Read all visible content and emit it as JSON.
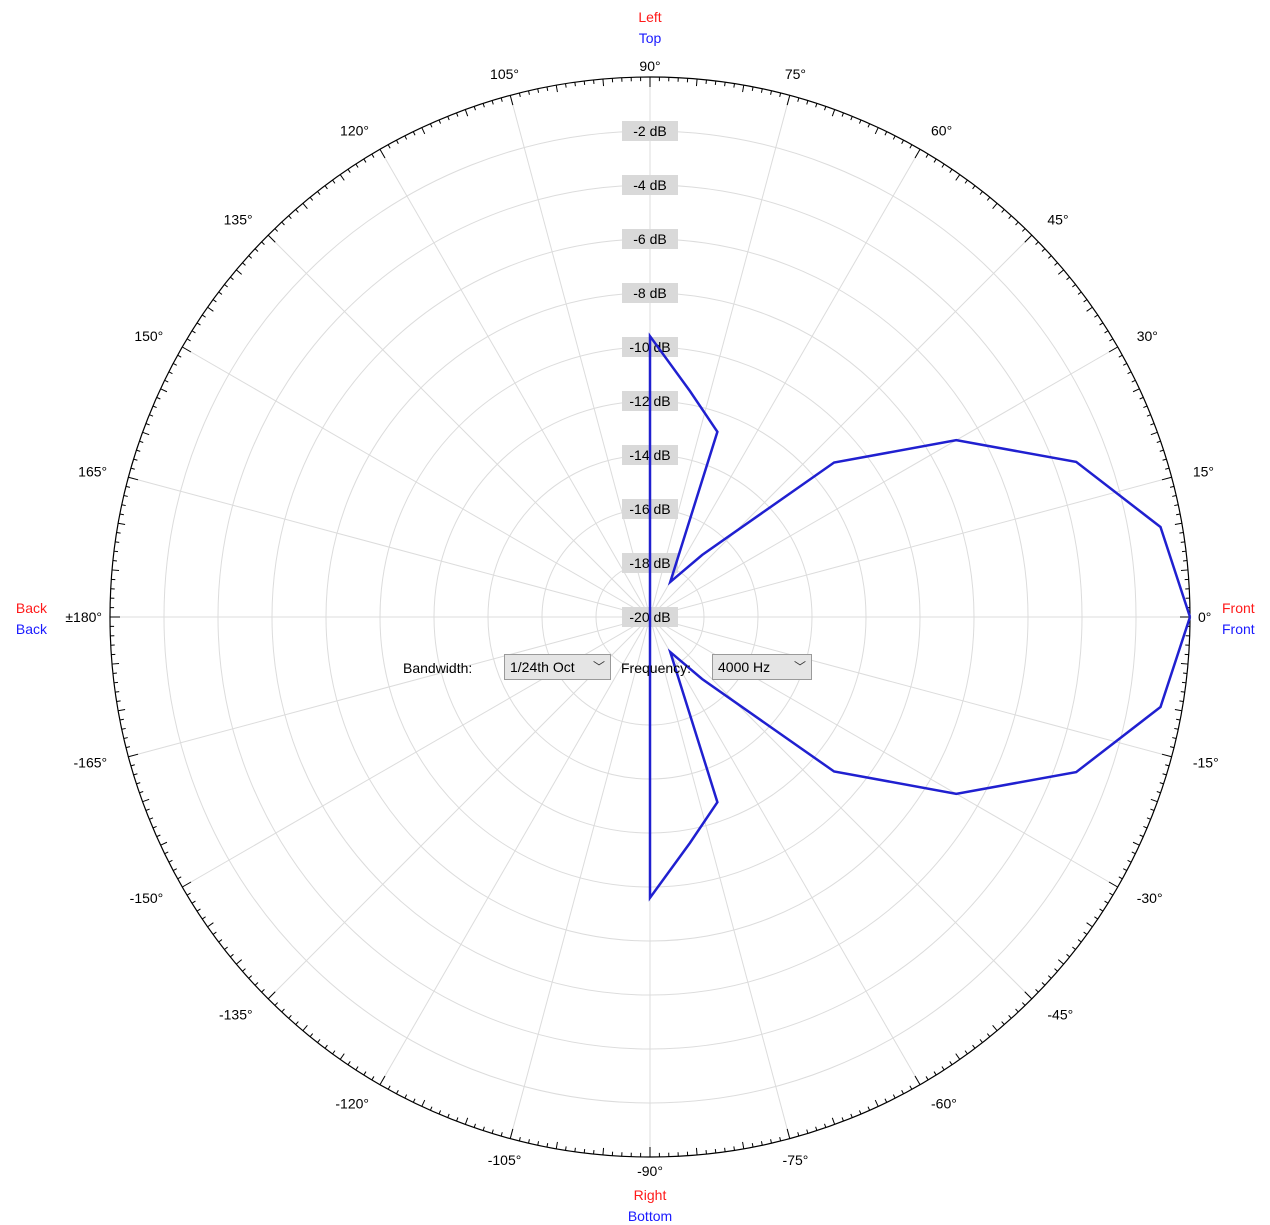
{
  "chart_data": {
    "type": "polar-line",
    "angular_unit": "degrees",
    "radial_unit": "dB",
    "radial_range": [
      -20,
      0
    ],
    "radial_ticks": [
      "-2 dB",
      "-4 dB",
      "-6 dB",
      "-8 dB",
      "-10 dB",
      "-12 dB",
      "-14 dB",
      "-16 dB",
      "-18 dB",
      "-20 dB"
    ],
    "radial_tick_values": [
      -2,
      -4,
      -6,
      -8,
      -10,
      -12,
      -14,
      -16,
      -18,
      -20
    ],
    "angle_labels": [
      {
        "deg": 0,
        "text": "0°"
      },
      {
        "deg": 15,
        "text": "15°"
      },
      {
        "deg": 30,
        "text": "30°"
      },
      {
        "deg": 45,
        "text": "45°"
      },
      {
        "deg": 60,
        "text": "60°"
      },
      {
        "deg": 75,
        "text": "75°"
      },
      {
        "deg": 90,
        "text": "90°"
      },
      {
        "deg": 105,
        "text": "105°"
      },
      {
        "deg": 120,
        "text": "120°"
      },
      {
        "deg": 135,
        "text": "135°"
      },
      {
        "deg": 150,
        "text": "150°"
      },
      {
        "deg": 165,
        "text": "165°"
      },
      {
        "deg": 180,
        "text": "±180°"
      },
      {
        "deg": -165,
        "text": "-165°"
      },
      {
        "deg": -150,
        "text": "-150°"
      },
      {
        "deg": -135,
        "text": "-135°"
      },
      {
        "deg": -120,
        "text": "-120°"
      },
      {
        "deg": -105,
        "text": "-105°"
      },
      {
        "deg": -90,
        "text": "-90°"
      },
      {
        "deg": -75,
        "text": "-75°"
      },
      {
        "deg": -60,
        "text": "-60°"
      },
      {
        "deg": -45,
        "text": "-45°"
      },
      {
        "deg": -30,
        "text": "-30°"
      },
      {
        "deg": -15,
        "text": "-15°"
      }
    ],
    "direction_labels": {
      "top": {
        "red": "Left",
        "blue": "Top"
      },
      "bottom": {
        "red": "Right",
        "blue": "Bottom"
      },
      "left": {
        "red": "Back",
        "blue": "Back"
      },
      "right": {
        "red": "Front",
        "blue": "Front"
      }
    },
    "series": [
      {
        "color": "#2020d0",
        "points": [
          {
            "angle": 0,
            "db": 0
          },
          {
            "angle": 10,
            "db": -0.8
          },
          {
            "angle": 20,
            "db": -3.2
          },
          {
            "angle": 30,
            "db": -6.9
          },
          {
            "angle": 40,
            "db": -11.1
          },
          {
            "angle": 50,
            "db": -17.0
          },
          {
            "angle": 60,
            "db": -18.5
          },
          {
            "angle": 70,
            "db": -12.7
          },
          {
            "angle": 80,
            "db": -11.5
          },
          {
            "angle": 90,
            "db": -9.6
          },
          {
            "angle": 180,
            "db": -20.0
          },
          {
            "angle": -90,
            "db": -9.6
          },
          {
            "angle": -80,
            "db": -11.5
          },
          {
            "angle": -70,
            "db": -12.7
          },
          {
            "angle": -60,
            "db": -18.5
          },
          {
            "angle": -50,
            "db": -17.0
          },
          {
            "angle": -40,
            "db": -11.1
          },
          {
            "angle": -30,
            "db": -6.9
          },
          {
            "angle": -20,
            "db": -3.2
          },
          {
            "angle": -10,
            "db": -0.8
          },
          {
            "angle": 0,
            "db": 0
          }
        ]
      }
    ],
    "colors": {
      "red_label": "#ff1a1a",
      "blue_label": "#1a1aff",
      "grid": "#dcdcdc",
      "tick_box": "#d9d9d9"
    }
  },
  "controls": {
    "bandwidth_label": "Bandwidth:",
    "bandwidth_value": "1/24th Oct",
    "frequency_label": "Frequency:",
    "frequency_value": "4000 Hz",
    "chevron_icon": "chevron-down-icon"
  }
}
